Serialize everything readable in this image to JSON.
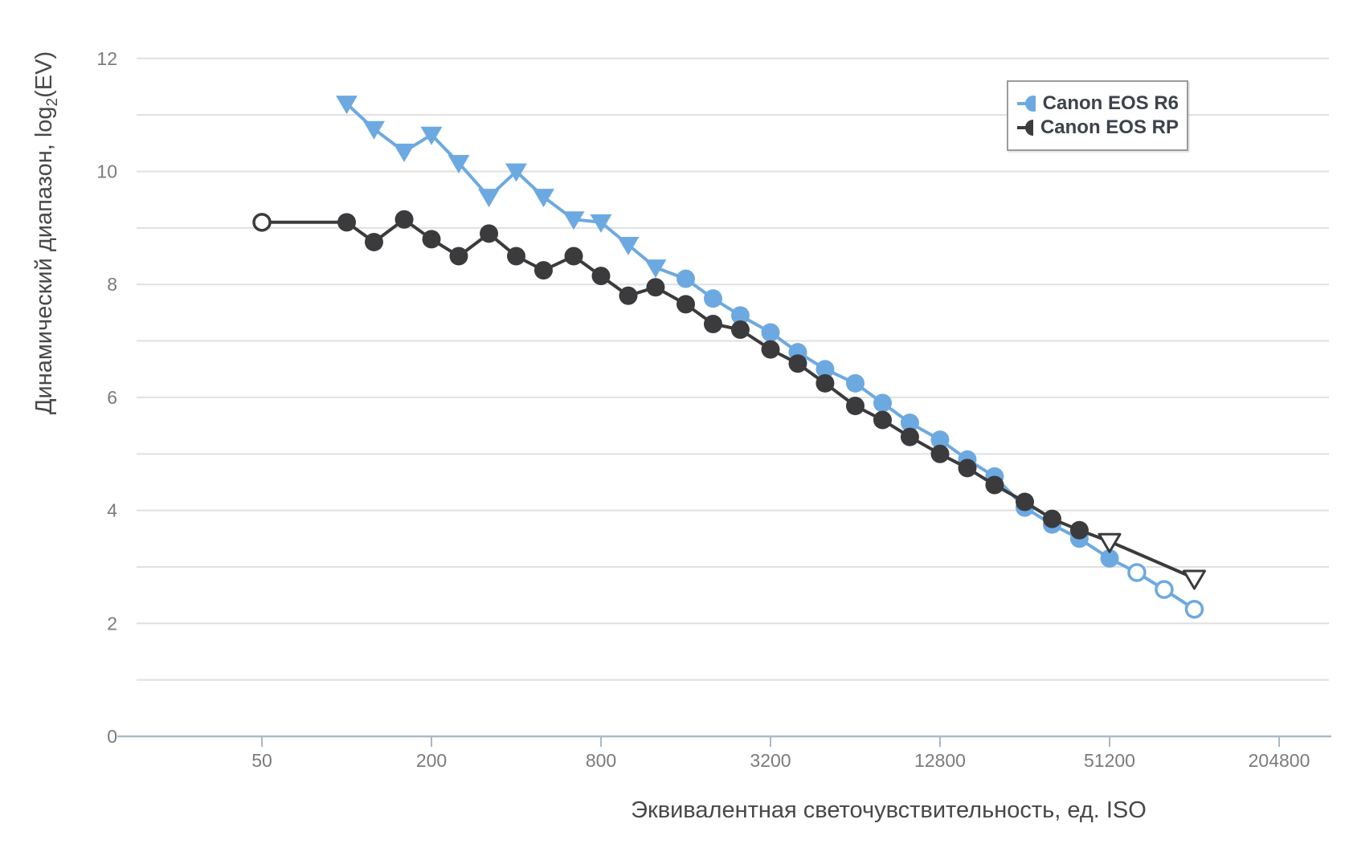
{
  "chart_data": {
    "type": "line",
    "title": "",
    "xlabel": "Эквивалентная светочувствительность, ед. ISO",
    "ylabel": "Динамический диапазон, log2(EV)",
    "ylabel_parts": {
      "prefix": "Динамический диапазон, log",
      "sub": "2",
      "suffix": "(EV)"
    },
    "x_scale": "log",
    "x_ticks": [
      50,
      200,
      800,
      3200,
      12800,
      51200,
      204800
    ],
    "y_ticks_labeled": [
      0,
      2,
      4,
      6,
      8,
      10,
      12
    ],
    "y_gridline_step": 1,
    "ylim": [
      0,
      12
    ],
    "grid": true,
    "legend_position": "top-right",
    "colors": {
      "grid": "#e0e0e0",
      "axis_line": "#a9b9c8",
      "tick_label": "#7b7b7b",
      "axis_title": "#484848",
      "legend_text": "#3d424c",
      "legend_border": "#9b9b9b",
      "background": "#ffffff"
    },
    "marker_legend": {
      "t": "filled triangle-down",
      "c": "filled circle",
      "o": "open circle",
      "ot": "open triangle-down"
    },
    "series": [
      {
        "name": "Canon EOS R6",
        "color": "#6da9e1",
        "points": [
          [
            100,
            11.2,
            "t"
          ],
          [
            125,
            10.75,
            "t"
          ],
          [
            160,
            10.35,
            "t"
          ],
          [
            200,
            10.65,
            "t"
          ],
          [
            250,
            10.15,
            "t"
          ],
          [
            320,
            9.55,
            "t"
          ],
          [
            400,
            10.0,
            "t"
          ],
          [
            500,
            9.55,
            "t"
          ],
          [
            640,
            9.15,
            "t"
          ],
          [
            800,
            9.1,
            "t"
          ],
          [
            1000,
            8.7,
            "t"
          ],
          [
            1250,
            8.3,
            "t"
          ],
          [
            1600,
            8.1,
            "c"
          ],
          [
            2000,
            7.75,
            "c"
          ],
          [
            2500,
            7.45,
            "c"
          ],
          [
            3200,
            7.15,
            "c"
          ],
          [
            4000,
            6.8,
            "c"
          ],
          [
            5000,
            6.5,
            "c"
          ],
          [
            6400,
            6.25,
            "c"
          ],
          [
            8000,
            5.9,
            "c"
          ],
          [
            10000,
            5.55,
            "c"
          ],
          [
            12800,
            5.25,
            "c"
          ],
          [
            16000,
            4.9,
            "c"
          ],
          [
            20000,
            4.6,
            "c"
          ],
          [
            25600,
            4.05,
            "c"
          ],
          [
            32000,
            3.75,
            "c"
          ],
          [
            40000,
            3.5,
            "c"
          ],
          [
            51200,
            3.15,
            "c"
          ],
          [
            64000,
            2.9,
            "o"
          ],
          [
            80000,
            2.6,
            "o"
          ],
          [
            102400,
            2.25,
            "o"
          ]
        ]
      },
      {
        "name": "Canon EOS RP",
        "color": "#3b3b3d",
        "points": [
          [
            50,
            9.1,
            "o"
          ],
          [
            100,
            9.1,
            "c"
          ],
          [
            125,
            8.75,
            "c"
          ],
          [
            160,
            9.15,
            "c"
          ],
          [
            200,
            8.8,
            "c"
          ],
          [
            250,
            8.5,
            "c"
          ],
          [
            320,
            8.9,
            "c"
          ],
          [
            400,
            8.5,
            "c"
          ],
          [
            500,
            8.25,
            "c"
          ],
          [
            640,
            8.5,
            "c"
          ],
          [
            800,
            8.15,
            "c"
          ],
          [
            1000,
            7.8,
            "c"
          ],
          [
            1250,
            7.95,
            "c"
          ],
          [
            1600,
            7.65,
            "c"
          ],
          [
            2000,
            7.3,
            "c"
          ],
          [
            2500,
            7.2,
            "c"
          ],
          [
            3200,
            6.85,
            "c"
          ],
          [
            4000,
            6.6,
            "c"
          ],
          [
            5000,
            6.25,
            "c"
          ],
          [
            6400,
            5.85,
            "c"
          ],
          [
            8000,
            5.6,
            "c"
          ],
          [
            10000,
            5.3,
            "c"
          ],
          [
            12800,
            5.0,
            "c"
          ],
          [
            16000,
            4.75,
            "c"
          ],
          [
            20000,
            4.45,
            "c"
          ],
          [
            25600,
            4.15,
            "c"
          ],
          [
            32000,
            3.85,
            "c"
          ],
          [
            40000,
            3.65,
            "c"
          ],
          [
            51200,
            3.45,
            "ot"
          ],
          [
            102400,
            2.8,
            "ot"
          ]
        ]
      }
    ]
  },
  "legend": {
    "items": [
      {
        "label": "Canon EOS R6"
      },
      {
        "label": "Canon EOS RP"
      }
    ]
  }
}
